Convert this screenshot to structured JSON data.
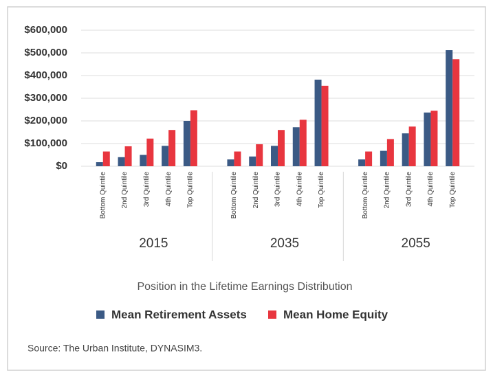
{
  "chart_data": {
    "type": "bar",
    "groups": [
      "2015",
      "2035",
      "2055"
    ],
    "categories": [
      "Bottom Quintile",
      "2nd Quintile",
      "3rd Quintile",
      "4th Quintile",
      "Top Quintile",
      "Bottom Quintile",
      "2nd Quintile",
      "3rd Quintile",
      "4th Quintile",
      "Top Quintile",
      "Bottom Quintile",
      "2nd Quintile",
      "3rd Quintile",
      "4th Quintile",
      "Top Quintile"
    ],
    "series": [
      {
        "name": "Mean Retirement Assets",
        "color": "#3b5a85",
        "values": [
          18000,
          40000,
          50000,
          90000,
          200000,
          30000,
          43000,
          90000,
          172000,
          382000,
          30000,
          68000,
          145000,
          237000,
          512000
        ]
      },
      {
        "name": "Mean Home Equity",
        "color": "#e8363f",
        "values": [
          65000,
          88000,
          122000,
          160000,
          247000,
          65000,
          97000,
          160000,
          205000,
          355000,
          65000,
          120000,
          175000,
          245000,
          472000
        ]
      }
    ],
    "xlabel": "Position in the Lifetime Earnings Distribution",
    "ylim": [
      0,
      600000
    ],
    "yticks": [
      {
        "value": 0,
        "label": "$0"
      },
      {
        "value": 100000,
        "label": "$100,000"
      },
      {
        "value": 200000,
        "label": "$200,000"
      },
      {
        "value": 300000,
        "label": "$300,000"
      },
      {
        "value": 400000,
        "label": "$400,000"
      },
      {
        "value": 500000,
        "label": "$500,000"
      },
      {
        "value": 600000,
        "label": "$600,000"
      }
    ],
    "grid": true,
    "source": "Source: The Urban Institute, DYNASIM3."
  }
}
